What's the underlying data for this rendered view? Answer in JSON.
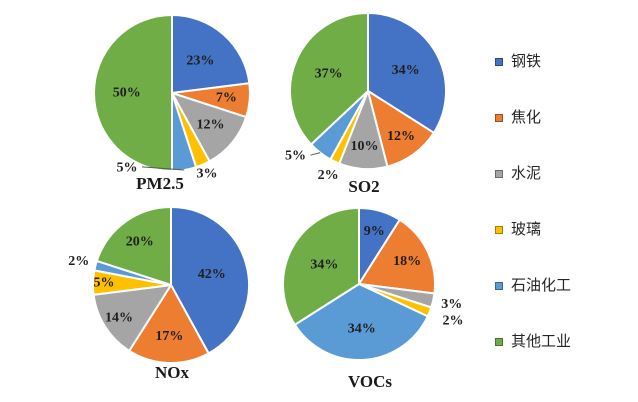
{
  "page": {
    "background": "#ffffff"
  },
  "legend": {
    "position": "right",
    "items": [
      {
        "label": "钢铁",
        "color": "#4472C4"
      },
      {
        "label": "焦化",
        "color": "#ED7D31"
      },
      {
        "label": "水泥",
        "color": "#A5A5A5"
      },
      {
        "label": "玻璃",
        "color": "#FFC000"
      },
      {
        "label": "石油化工",
        "color": "#5B9BD5"
      },
      {
        "label": "其他工业",
        "color": "#70AD47"
      }
    ]
  },
  "chart_data": [
    {
      "type": "pie",
      "title": "PM2.5",
      "categories": [
        "钢铁",
        "焦化",
        "水泥",
        "玻璃",
        "石油化工",
        "其他工业"
      ],
      "values": [
        23,
        7,
        12,
        3,
        5,
        50
      ],
      "labels": [
        "23%",
        "7%",
        "12%",
        "3%",
        "5%",
        "50%"
      ],
      "start_angle_deg": 0,
      "direction": "clockwise",
      "label_placement": [
        "in",
        "in",
        "in",
        "out",
        "out",
        "in"
      ],
      "label_r": [
        0.55,
        0.7,
        0.64,
        1.13,
        1.12,
        0.58
      ],
      "label_angle_deg": [
        null,
        null,
        null,
        null,
        211,
        null
      ],
      "leader_lines": [
        false,
        false,
        false,
        false,
        true,
        false
      ]
    },
    {
      "type": "pie",
      "title": "SO2",
      "categories": [
        "钢铁",
        "焦化",
        "水泥",
        "玻璃",
        "石油化工",
        "其他工业"
      ],
      "values": [
        34,
        12,
        10,
        2,
        5,
        37
      ],
      "labels": [
        "34%",
        "12%",
        "10%",
        "2%",
        "5%",
        "37%"
      ],
      "start_angle_deg": 0,
      "direction": "clockwise",
      "label_placement": [
        "in",
        "in",
        "in",
        "out",
        "out",
        "in"
      ],
      "label_r": [
        0.55,
        0.72,
        0.71,
        1.2,
        1.25,
        0.55
      ],
      "label_angle_deg": [
        null,
        null,
        null,
        null,
        228,
        null
      ],
      "leader_lines": [
        false,
        false,
        false,
        false,
        true,
        false
      ]
    },
    {
      "type": "pie",
      "title": "NOx",
      "categories": [
        "钢铁",
        "焦化",
        "水泥",
        "玻璃",
        "石油化工",
        "其他工业"
      ],
      "values": [
        42,
        17,
        14,
        5,
        2,
        20
      ],
      "labels": [
        "42%",
        "17%",
        "14%",
        "5%",
        "2%",
        "20%"
      ],
      "start_angle_deg": 0,
      "direction": "clockwise",
      "label_placement": [
        "in",
        "in",
        "in",
        "in",
        "out",
        "in"
      ],
      "label_r": [
        0.54,
        0.66,
        0.79,
        0.86,
        1.22,
        0.68
      ],
      "label_angle_deg": [
        null,
        null,
        null,
        null,
        null,
        null
      ],
      "leader_lines": [
        false,
        false,
        false,
        false,
        false,
        false
      ]
    },
    {
      "type": "pie",
      "title": "VOCs",
      "categories": [
        "钢铁",
        "焦化",
        "水泥",
        "玻璃",
        "石油化工",
        "其他工业"
      ],
      "values": [
        9,
        18,
        3,
        2,
        34,
        34
      ],
      "labels": [
        "9%",
        "18%",
        "3%",
        "2%",
        "34%",
        "34%"
      ],
      "start_angle_deg": 0,
      "direction": "clockwise",
      "label_placement": [
        "in",
        "in",
        "out",
        "out",
        "in",
        "in"
      ],
      "label_r": [
        0.72,
        0.7,
        1.25,
        1.33,
        0.59,
        0.52
      ],
      "label_angle_deg": [
        null,
        null,
        null,
        null,
        null,
        null
      ],
      "leader_lines": [
        false,
        false,
        false,
        false,
        false,
        false
      ]
    }
  ]
}
